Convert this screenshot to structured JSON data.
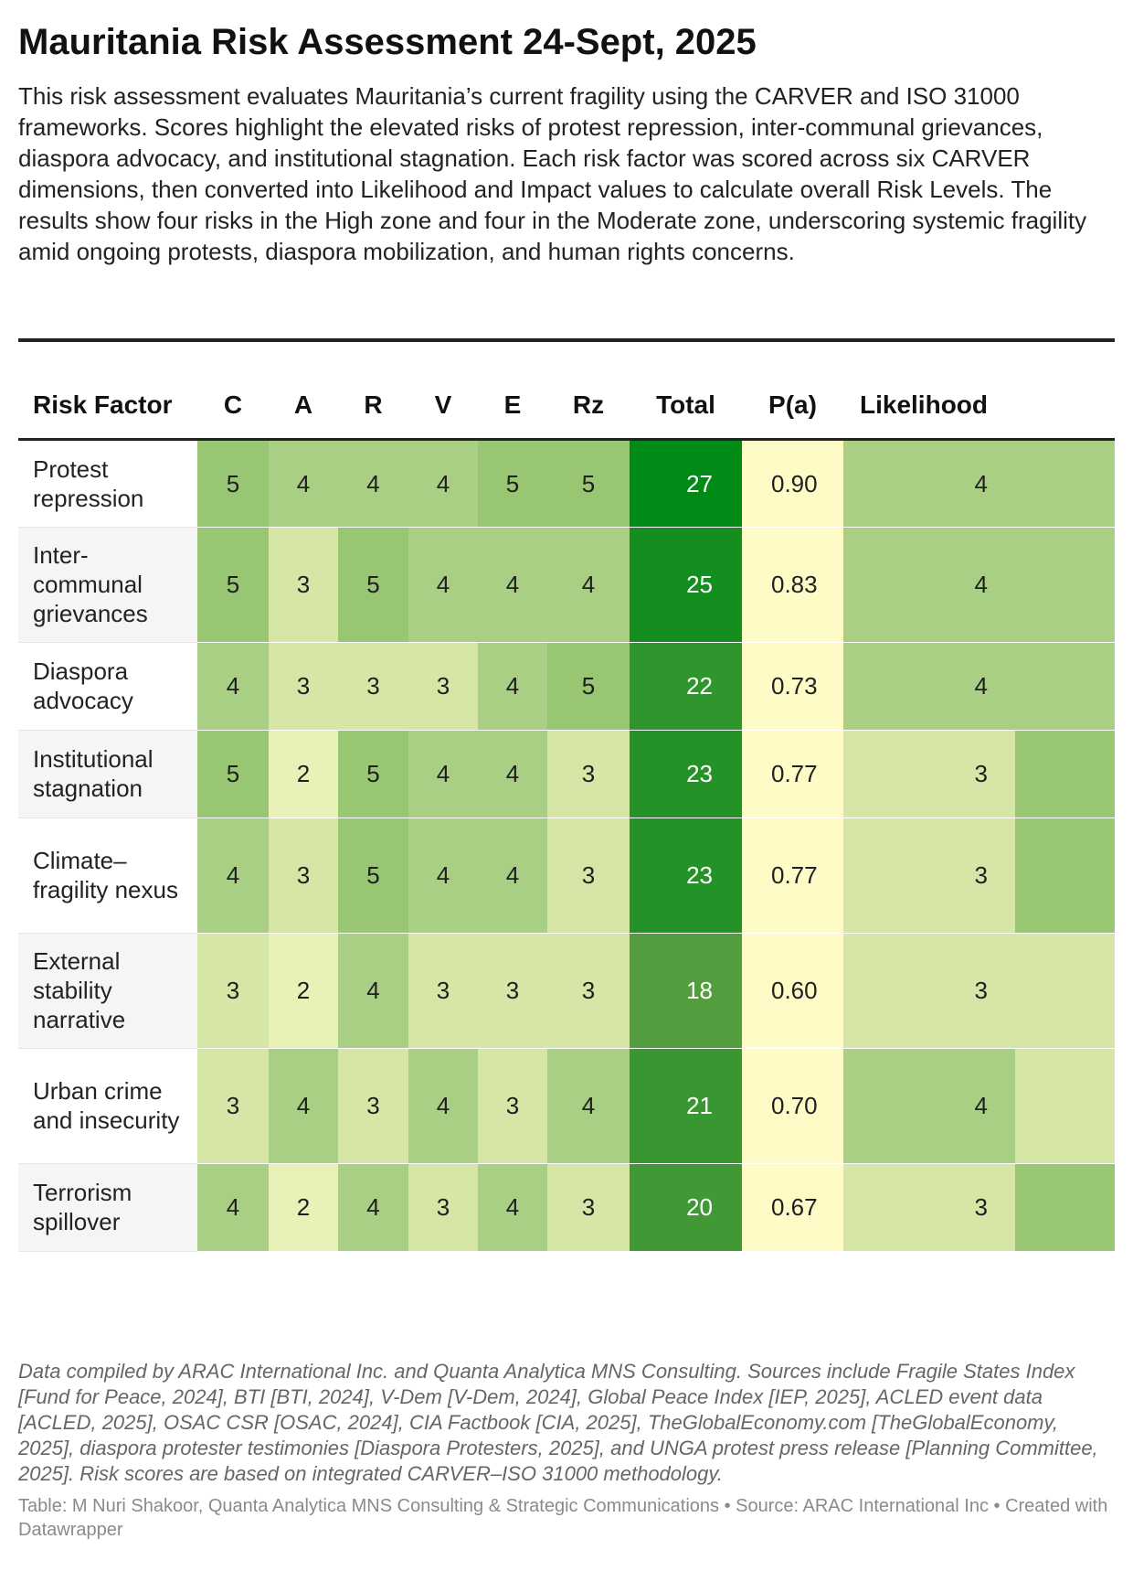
{
  "title": "Mauritania Risk Assessment 24-Sept, 2025",
  "description": "This risk assessment evaluates Mauritania’s current fragility using the CARVER and ISO 31000 frameworks. Scores highlight the elevated risks of protest repression, inter-communal grievances, diaspora advocacy, and institutional stagnation. Each risk factor was scored across six CARVER dimensions, then converted into Likelihood and Impact values to calculate overall Risk Levels. The results show four risks in the High zone and four in the Moderate zone, underscoring systemic fragility amid ongoing protests, diaspora mobilization, and human rights concerns.",
  "colors": {
    "score_2": "#e8f1b8",
    "score_3": "#d5e6a6",
    "score_4": "#a9cf84",
    "score_5": "#98c673",
    "total_min": "#549d3f",
    "total_max": "#008a16",
    "pa_bg": "#fefbc7",
    "likelihood_3": "#d5e6a6",
    "likelihood_4": "#a9cf84"
  },
  "chart_data": {
    "type": "table",
    "columns": [
      "Risk Factor",
      "C",
      "A",
      "R",
      "V",
      "E",
      "Rz",
      "Total",
      "P(a)",
      "Likelihood"
    ],
    "rows": [
      {
        "factor": "Protest repression",
        "C": "5",
        "A": "4",
        "R": "4",
        "V": "4",
        "E": "5",
        "Rz": "5",
        "Total": "27",
        "Pa": "0.90",
        "Likelihood": "4"
      },
      {
        "factor": "Inter-communal grievances",
        "C": "5",
        "A": "3",
        "R": "5",
        "V": "4",
        "E": "4",
        "Rz": "4",
        "Total": "25",
        "Pa": "0.83",
        "Likelihood": "4"
      },
      {
        "factor": "Diaspora advocacy",
        "C": "4",
        "A": "3",
        "R": "3",
        "V": "3",
        "E": "4",
        "Rz": "5",
        "Total": "22",
        "Pa": "0.73",
        "Likelihood": "4"
      },
      {
        "factor": "Institutional stagnation",
        "C": "5",
        "A": "2",
        "R": "5",
        "V": "4",
        "E": "4",
        "Rz": "3",
        "Total": "23",
        "Pa": "0.77",
        "Likelihood": "3"
      },
      {
        "factor": "Climate–fragility nexus",
        "C": "4",
        "A": "3",
        "R": "5",
        "V": "4",
        "E": "4",
        "Rz": "3",
        "Total": "23",
        "Pa": "0.77",
        "Likelihood": "3"
      },
      {
        "factor": "External stability narrative",
        "C": "3",
        "A": "2",
        "R": "4",
        "V": "3",
        "E": "3",
        "Rz": "3",
        "Total": "18",
        "Pa": "0.60",
        "Likelihood": "3"
      },
      {
        "factor": "Urban crime and insecurity",
        "C": "3",
        "A": "4",
        "R": "3",
        "V": "4",
        "E": "3",
        "Rz": "4",
        "Total": "21",
        "Pa": "0.70",
        "Likelihood": "4"
      },
      {
        "factor": "Terrorism spillover",
        "C": "4",
        "A": "2",
        "R": "4",
        "V": "3",
        "E": "4",
        "Rz": "3",
        "Total": "20",
        "Pa": "0.67",
        "Likelihood": "3"
      }
    ],
    "hidden_column_color_by_row": [
      "#a9cf84",
      "#a9cf84",
      "#a9cf84",
      "#98c673",
      "#98c673",
      "#d5e6a6",
      "#d5e6a6",
      "#98c673"
    ]
  },
  "notes": "Data compiled by ARAC International Inc. and Quanta Analytica MNS Consulting. Sources include Fragile States Index [Fund for Peace, 2024], BTI [BTI, 2024], V-Dem [V-Dem, 2024], Global Peace Index [IEP, 2025], ACLED event data [ACLED, 2025], OSAC CSR [OSAC, 2024], CIA Factbook [CIA, 2025], TheGlobalEconomy.com [TheGlobalEconomy, 2025], diaspora protester testimonies [Diaspora Protesters, 2025], and UNGA protest press release [Planning Committee, 2025]. Risk scores are based on integrated CARVER–ISO 31000 methodology.",
  "credit": "Table: M Nuri Shakoor, Quanta Analytica MNS Consulting & Strategic Communications • Source: ARAC International Inc • Created with Datawrapper"
}
